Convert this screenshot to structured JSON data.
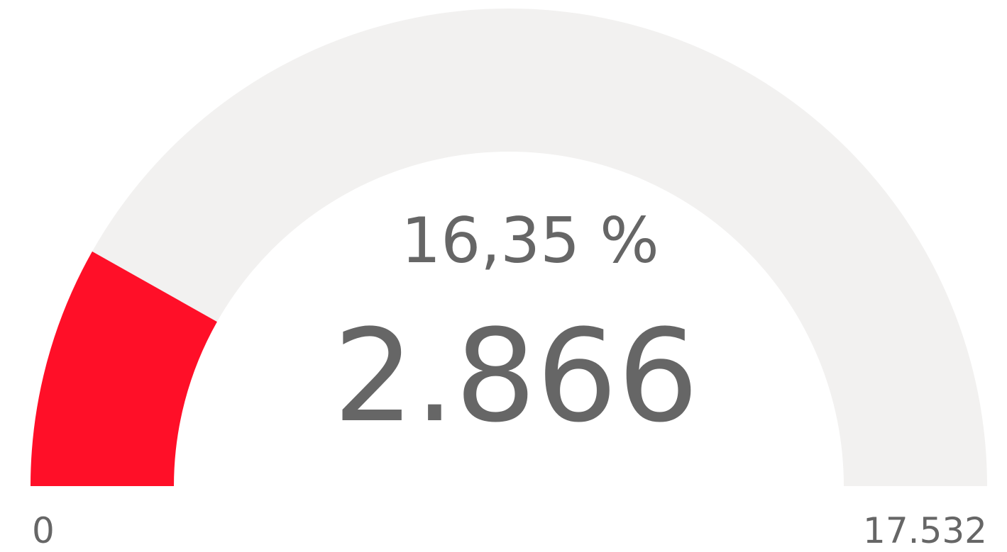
{
  "chart_data": {
    "type": "gauge",
    "values": [
      2866
    ],
    "value_labels": [
      "2.866"
    ],
    "percent": 16.35,
    "percent_label": "16,35 %",
    "ylim": [
      0,
      17532
    ],
    "yticks": [
      0,
      {
        "value": 17532,
        "label": "17.532"
      }
    ],
    "color": "#ff0f28",
    "track_color": "#f2f1f0"
  }
}
